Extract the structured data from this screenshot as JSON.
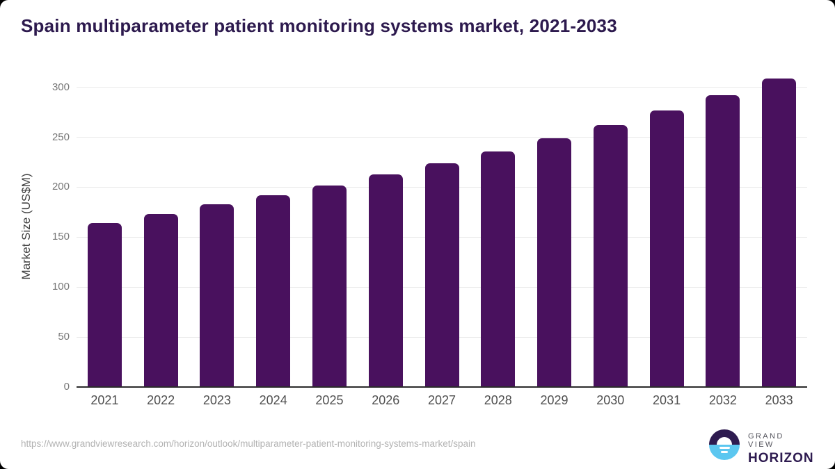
{
  "chart_data": {
    "type": "bar",
    "title": "Spain multiparameter patient monitoring systems market, 2021-2033",
    "categories": [
      "2021",
      "2022",
      "2023",
      "2024",
      "2025",
      "2026",
      "2027",
      "2028",
      "2029",
      "2030",
      "2031",
      "2032",
      "2033"
    ],
    "values": [
      164,
      173,
      183,
      192,
      202,
      213,
      224,
      236,
      249,
      262,
      277,
      292,
      309
    ],
    "xlabel": "",
    "ylabel": "Market Size (US$M)",
    "ylim": [
      0,
      320
    ],
    "yticks": [
      0,
      50,
      100,
      150,
      200,
      250,
      300
    ],
    "grid": "horizontal-only",
    "legend": "none",
    "bar_color": "#49115e",
    "title_color": "#2d1a4e"
  },
  "footer": {
    "source_url": "https://www.grandviewresearch.com/horizon/outlook/multiparameter-patient-monitoring-systems-market/spain",
    "logo": {
      "line1": "GRAND VIEW",
      "line2": "HORIZON",
      "circle_top_color": "#2e1b50",
      "circle_bottom_color": "#5cc7f0",
      "text_color": "#2e1b50"
    }
  }
}
